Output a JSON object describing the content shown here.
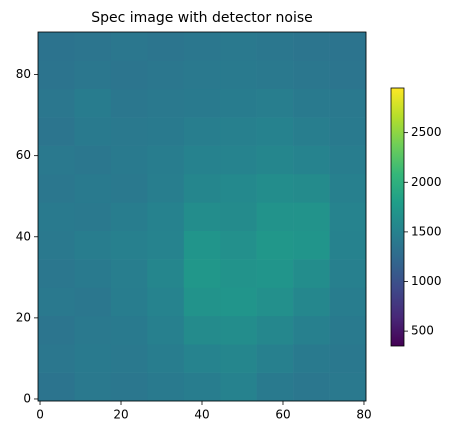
{
  "chart_data": {
    "type": "heatmap",
    "title": "Spec image with detector noise",
    "colormap": "viridis",
    "xedges": [
      -0.5,
      8.5,
      17.5,
      26.5,
      35.5,
      44.5,
      53.5,
      62.5,
      71.5,
      80.5
    ],
    "yedges": [
      -0.5,
      6.5,
      13.5,
      20.5,
      27.5,
      34.5,
      41.5,
      48.5,
      55.5,
      62.5,
      69.5,
      76.5,
      83.5,
      90.5
    ],
    "z": [
      [
        1350,
        1400,
        1380,
        1420,
        1450,
        1500,
        1420,
        1380,
        1400
      ],
      [
        1380,
        1420,
        1400,
        1450,
        1520,
        1550,
        1480,
        1420,
        1390
      ],
      [
        1360,
        1400,
        1420,
        1480,
        1600,
        1620,
        1560,
        1480,
        1420
      ],
      [
        1400,
        1380,
        1450,
        1520,
        1680,
        1700,
        1650,
        1560,
        1450
      ],
      [
        1380,
        1420,
        1460,
        1550,
        1720,
        1680,
        1700,
        1620,
        1480
      ],
      [
        1400,
        1450,
        1480,
        1520,
        1700,
        1650,
        1720,
        1700,
        1500
      ],
      [
        1420,
        1400,
        1450,
        1500,
        1620,
        1600,
        1680,
        1680,
        1520
      ],
      [
        1380,
        1420,
        1400,
        1460,
        1550,
        1580,
        1620,
        1600,
        1480
      ],
      [
        1400,
        1380,
        1420,
        1450,
        1500,
        1520,
        1550,
        1520,
        1450
      ],
      [
        1360,
        1420,
        1400,
        1420,
        1460,
        1480,
        1500,
        1460,
        1420
      ],
      [
        1380,
        1440,
        1380,
        1400,
        1420,
        1440,
        1460,
        1420,
        1400
      ],
      [
        1350,
        1380,
        1360,
        1380,
        1400,
        1420,
        1400,
        1380,
        1360
      ],
      [
        1340,
        1360,
        1380,
        1360,
        1380,
        1400,
        1380,
        1360,
        1350
      ]
    ],
    "xlim": [
      -0.5,
      80.5
    ],
    "ylim": [
      -0.5,
      90.5
    ],
    "xticks": [
      0,
      20,
      40,
      60,
      80
    ],
    "yticks": [
      0,
      20,
      40,
      60,
      80
    ],
    "clim": [
      350,
      2950
    ],
    "cticks": [
      500,
      1000,
      1500,
      2000,
      2500
    ]
  }
}
